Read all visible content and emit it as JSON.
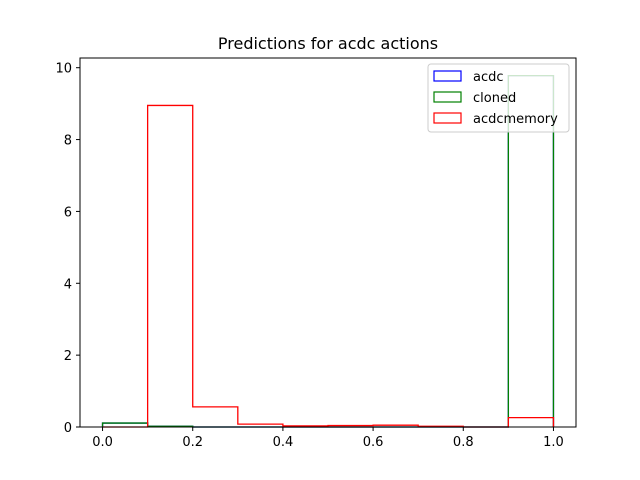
{
  "chart_data": {
    "type": "histogram",
    "title": "Predictions for acdc actions",
    "xlabel": "",
    "ylabel": "",
    "xlim": [
      -0.05,
      1.05
    ],
    "ylim": [
      0,
      10.27
    ],
    "xticks": [
      0.0,
      0.2,
      0.4,
      0.6,
      0.8,
      1.0
    ],
    "xtick_labels": [
      "0.0",
      "0.2",
      "0.4",
      "0.6",
      "0.8",
      "1.0"
    ],
    "yticks": [
      0,
      2,
      4,
      6,
      8,
      10
    ],
    "ytick_labels": [
      "0",
      "2",
      "4",
      "6",
      "8",
      "10"
    ],
    "bin_edges": [
      0.0,
      0.1,
      0.2,
      0.3,
      0.4,
      0.5,
      0.6,
      0.7,
      0.8,
      0.9,
      1.0
    ],
    "histtype": "step",
    "legend_position": "top-right",
    "grid": false,
    "series": [
      {
        "name": "acdc",
        "color": "#0000ff",
        "values": [
          0.11,
          0.02,
          0.0,
          0.0,
          0.0,
          0.0,
          0.0,
          0.0,
          0.0,
          9.78
        ]
      },
      {
        "name": "cloned",
        "color": "#008000",
        "values": [
          0.11,
          0.02,
          0.0,
          0.0,
          0.0,
          0.0,
          0.0,
          0.0,
          0.0,
          9.78
        ]
      },
      {
        "name": "acdcmemory",
        "color": "#ff0000",
        "values": [
          0.0,
          8.95,
          0.56,
          0.08,
          0.03,
          0.04,
          0.05,
          0.02,
          0.0,
          0.26
        ]
      }
    ]
  }
}
